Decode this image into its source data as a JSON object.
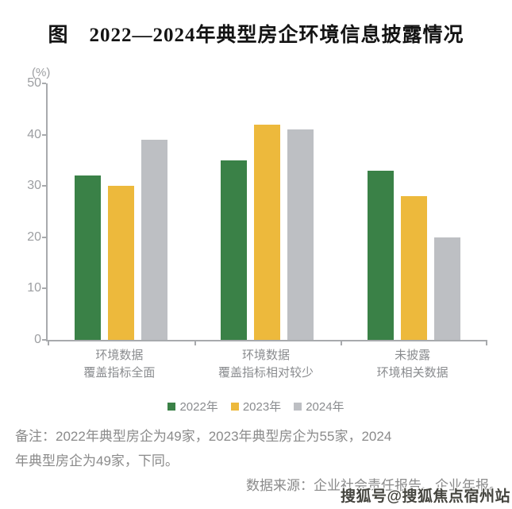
{
  "title": "图　2022—2024年典型房企环境信息披露情况",
  "chart_data": {
    "type": "bar",
    "unit_label": "(%)",
    "categories": [
      {
        "line1": "环境数据",
        "line2": "覆盖指标全面"
      },
      {
        "line1": "环境数据",
        "line2": "覆盖指标相对较少"
      },
      {
        "line1": "未披露",
        "line2": "环境相关数据"
      }
    ],
    "series": [
      {
        "name": "2022年",
        "color": "#3a8147",
        "values": [
          32,
          35,
          33
        ]
      },
      {
        "name": "2023年",
        "color": "#edb93c",
        "values": [
          30,
          42,
          28
        ]
      },
      {
        "name": "2024年",
        "color": "#bdbfc3",
        "values": [
          39,
          41,
          20
        ]
      }
    ],
    "ylim": [
      0,
      50
    ],
    "y_ticks": [
      0,
      10,
      20,
      30,
      40,
      50
    ],
    "grid": false,
    "legend_position": "bottom"
  },
  "notes": {
    "remark_line1": "备注：2022年典型房企为49家，2023年典型房企为55家，2024",
    "remark_line2": "年典型房企为49家，下同。",
    "source": "数据来源：企业社会责任报告、企业年报。"
  },
  "watermark": "搜狐号@搜狐焦点宿州站",
  "colors": {
    "axis": "#a8aaad",
    "tick_label": "#9c9ea1",
    "category_label": "#8a8c8f",
    "note_text": "#8a8a8a",
    "title_text": "#141414",
    "watermark_text": "#45453f"
  }
}
